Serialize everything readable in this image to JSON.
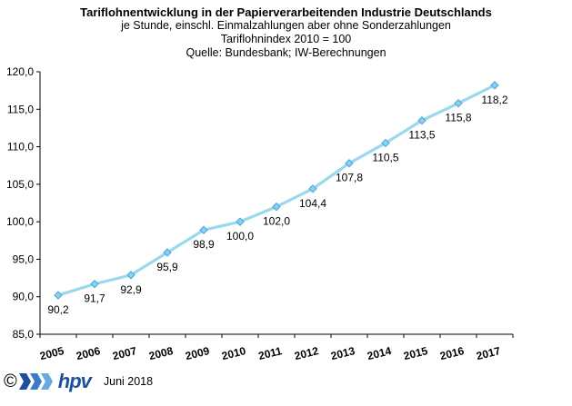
{
  "chart_data": {
    "type": "line",
    "title": "Tariflohnentwicklung in der Papierverarbeitenden Industrie Deutschlands",
    "subtitle_lines": [
      "je Stunde, einschl. Einmalzahlungen  aber ohne Sonderzahlungen",
      "Tariflohnindex  2010  = 100",
      "Quelle: Bundesbank; IW-Berechnungen"
    ],
    "xlabel": "",
    "ylabel": "",
    "categories": [
      "2005",
      "2006",
      "2007",
      "2008",
      "2009",
      "2010",
      "2011",
      "2012",
      "2013",
      "2014",
      "2015",
      "2016",
      "2017"
    ],
    "series": [
      {
        "values": [
          90.2,
          91.7,
          92.9,
          95.9,
          98.9,
          100.0,
          102.0,
          104.4,
          107.8,
          110.5,
          113.5,
          115.8,
          118.2
        ],
        "labels": [
          "90,2",
          "91,7",
          "92,9",
          "95,9",
          "98,9",
          "100,0",
          "102,0",
          "104,4",
          "107,8",
          "110,5",
          "113,5",
          "115,8",
          "118,2"
        ]
      }
    ],
    "ylim": [
      85,
      120
    ],
    "yticks": [
      "85,0",
      "90,0",
      "95,0",
      "100,0",
      "105,0",
      "110,0",
      "115,0",
      "120,0"
    ],
    "grid": false,
    "line_color": "#99d9f0",
    "marker_color": "#8ccfee",
    "marker_edge": "#4aa3d8"
  },
  "footer": {
    "copyright": "©",
    "logo_text": "hpv",
    "date": "Juni 2018"
  }
}
